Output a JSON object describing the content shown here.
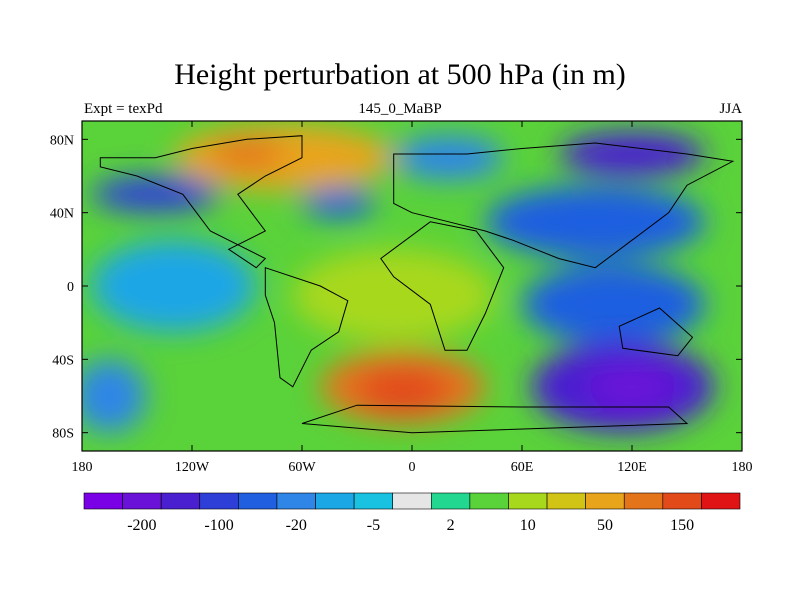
{
  "chart_data": {
    "type": "heatmap",
    "title": "Height perturbation at 500 hPa (in m)",
    "subtitle_left": "Expt = texPd",
    "subtitle_center": "145_0_MaBP",
    "subtitle_right": "JJA",
    "x_tick_labels": [
      "180",
      "120W",
      "60W",
      "0",
      "60E",
      "120E",
      "180"
    ],
    "x_tick_values": [
      -180,
      -120,
      -60,
      0,
      60,
      120,
      180
    ],
    "y_tick_labels": [
      "80S",
      "40S",
      "0",
      "40N",
      "80N"
    ],
    "y_tick_values": [
      -80,
      -40,
      0,
      40,
      80
    ],
    "xlim": [
      -180,
      180
    ],
    "ylim": [
      -90,
      90
    ],
    "colorbar": {
      "colors": [
        "#7a00e6",
        "#6a12d8",
        "#4a1fd0",
        "#2e3fd8",
        "#1f5fe0",
        "#2f86e6",
        "#1ba6e6",
        "#18c2e0",
        "#e6e6e6",
        "#22d890",
        "#5ad23a",
        "#a8d81c",
        "#d2c414",
        "#e8a41a",
        "#e4741a",
        "#e24a1a",
        "#e01414"
      ],
      "labels": [
        "-200",
        "-100",
        "-20",
        "-5",
        "2",
        "10",
        "50",
        "150"
      ],
      "label_boundary_index": [
        2,
        4,
        6,
        8,
        10,
        12,
        14,
        16
      ]
    },
    "color_blobs": [
      {
        "x": -70,
        "y": 70,
        "rx": 60,
        "ry": 18,
        "c": "#e8a41a"
      },
      {
        "x": -90,
        "y": 72,
        "rx": 20,
        "ry": 8,
        "c": "#e4741a"
      },
      {
        "x": -140,
        "y": 50,
        "rx": 35,
        "ry": 10,
        "c": "#2e3fd8"
      },
      {
        "x": -40,
        "y": 45,
        "rx": 20,
        "ry": 8,
        "c": "#1f5fe0"
      },
      {
        "x": 20,
        "y": 70,
        "rx": 30,
        "ry": 12,
        "c": "#2f86e6"
      },
      {
        "x": 120,
        "y": 72,
        "rx": 40,
        "ry": 12,
        "c": "#4a1fd0"
      },
      {
        "x": 100,
        "y": 35,
        "rx": 60,
        "ry": 20,
        "c": "#1f5fe0"
      },
      {
        "x": -130,
        "y": 0,
        "rx": 45,
        "ry": 25,
        "c": "#1ba6e6"
      },
      {
        "x": -10,
        "y": -5,
        "rx": 55,
        "ry": 25,
        "c": "#a8d81c"
      },
      {
        "x": 110,
        "y": -10,
        "rx": 50,
        "ry": 22,
        "c": "#1f5fe0"
      },
      {
        "x": -5,
        "y": -55,
        "rx": 45,
        "ry": 20,
        "c": "#e4741a"
      },
      {
        "x": -5,
        "y": -57,
        "rx": 25,
        "ry": 12,
        "c": "#e24a1a"
      },
      {
        "x": 115,
        "y": -55,
        "rx": 50,
        "ry": 25,
        "c": "#4a1fd0"
      },
      {
        "x": 120,
        "y": -55,
        "rx": 25,
        "ry": 12,
        "c": "#6a12d8"
      },
      {
        "x": -165,
        "y": -60,
        "rx": 20,
        "ry": 20,
        "c": "#2f86e6"
      }
    ]
  }
}
